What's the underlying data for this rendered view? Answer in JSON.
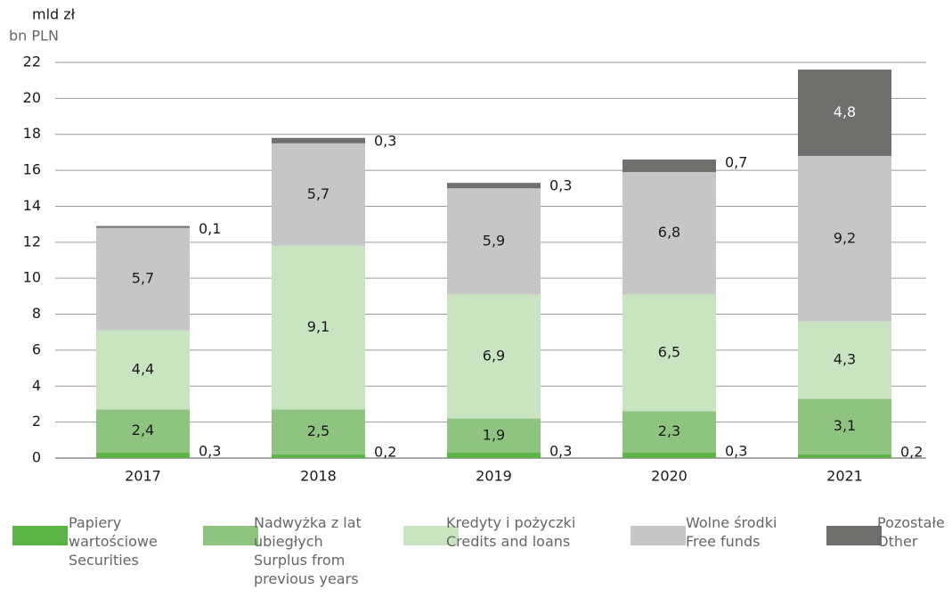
{
  "chart_data": {
    "type": "stacked_bar",
    "unit_label": "mld zł",
    "unit_label_en": "bn PLN",
    "categories": [
      "2017",
      "2018",
      "2019",
      "2020",
      "2021"
    ],
    "series": [
      {
        "name": "Papiery wartościowe",
        "name_en": "Securities",
        "color": "#5db446",
        "values": [
          0.3,
          0.2,
          0.3,
          0.3,
          0.2
        ],
        "value_labels": [
          "0,3",
          "0,2",
          "0,3",
          "0,3",
          "0,2"
        ]
      },
      {
        "name": "Nadwyżka z lat ubiegłych",
        "name_en": "Surplus from previous years",
        "color": "#8fc480",
        "values": [
          2.4,
          2.5,
          1.9,
          2.3,
          3.1
        ],
        "value_labels": [
          "2,4",
          "2,5",
          "1,9",
          "2,3",
          "3,1"
        ]
      },
      {
        "name": "Kredyty i pożyczki",
        "name_en": "Credits and loans",
        "color": "#c9e4c1",
        "values": [
          4.4,
          9.1,
          6.9,
          6.5,
          4.3
        ],
        "value_labels": [
          "4,4",
          "9,1",
          "6,9",
          "6,5",
          "4,3"
        ]
      },
      {
        "name": "Wolne środki",
        "name_en": "Free funds",
        "color": "#c6c6c6",
        "values": [
          5.7,
          5.7,
          5.9,
          6.8,
          9.2
        ],
        "value_labels": [
          "5,7",
          "5,7",
          "5,9",
          "6,8",
          "9,2"
        ]
      },
      {
        "name": "Pozostałe",
        "name_en": "Other",
        "color": "#6f6f6e",
        "values": [
          0.1,
          0.3,
          0.3,
          0.7,
          4.8
        ],
        "value_labels": [
          "0,1",
          "0,3",
          "0,3",
          "0,7",
          "4,8"
        ]
      }
    ],
    "ylim": [
      0,
      22
    ],
    "yticks": [
      0,
      2,
      4,
      6,
      8,
      10,
      12,
      14,
      16,
      18,
      20,
      22
    ],
    "grid": true
  }
}
